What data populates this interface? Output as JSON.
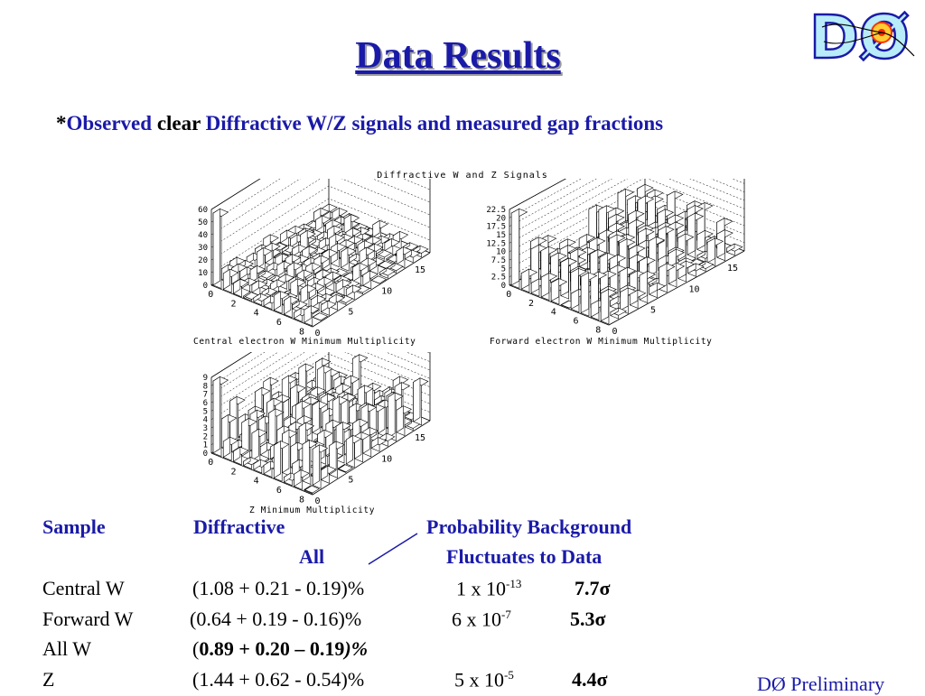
{
  "slide": {
    "title": "Data Results",
    "subtitle": {
      "star": "*",
      "observed": "Observed",
      "clear": "clear",
      "rest": "Diffractive W/Z signals and measured gap fractions"
    },
    "logo_text": "DØ",
    "figure_title": "Diffractive W and Z Signals",
    "plots": [
      {
        "caption": "Central electron W Minimum Multiplicity",
        "y_ticks": [
          "0",
          "10",
          "20",
          "30",
          "40",
          "50",
          "60"
        ],
        "x_ticks": [
          "0",
          "2",
          "4",
          "6",
          "8"
        ],
        "z_ticks": [
          "0",
          "5",
          "10",
          "15"
        ]
      },
      {
        "caption": "Forward electron W Minimum Multiplicity",
        "y_ticks": [
          "0",
          "2.5",
          "5",
          "7.5",
          "10",
          "12.5",
          "15",
          "17.5",
          "20",
          "22.5"
        ],
        "x_ticks": [
          "0",
          "2",
          "4",
          "6",
          "8"
        ],
        "z_ticks": [
          "0",
          "5",
          "10",
          "15"
        ]
      },
      {
        "caption": "Z Minimum Multiplicity",
        "y_ticks": [
          "0",
          "1",
          "2",
          "3",
          "4",
          "5",
          "6",
          "7",
          "8",
          "9"
        ],
        "x_ticks": [
          "0",
          "2",
          "4",
          "6",
          "8"
        ],
        "z_ticks": [
          "0",
          "5",
          "10",
          "15"
        ]
      }
    ],
    "table": {
      "headers": {
        "sample": "Sample",
        "diffractive": "Diffractive",
        "all": "All",
        "probability": "Probability Background",
        "fluctuates": "Fluctuates to Data"
      },
      "rows": [
        {
          "sample": "Central W",
          "diffractive": "(1.08 + 0.21 - 0.19)%",
          "prob_base": "1 x 10",
          "prob_exp": "-13",
          "sigma": "7.7σ"
        },
        {
          "sample": "Forward W",
          "diffractive": "(0.64 + 0.19 - 0.16)%",
          "prob_base": "6 x 10",
          "prob_exp": "-7",
          "sigma": "5.3σ"
        },
        {
          "sample": "All W",
          "diffractive_open": "(",
          "diffractive_bold": "0.89 + 0.20 – 0.19",
          "diffractive_close": ")%"
        },
        {
          "sample": "Z",
          "diffractive": "(1.44 + 0.62 - 0.54)%",
          "prob_base": "5 x 10",
          "prob_exp": "-5",
          "sigma": "4.4σ"
        }
      ]
    },
    "footer": "DØ Preliminary",
    "colors": {
      "title": "#1a1aa8",
      "text": "#000000",
      "logo_fill": "#b8ecf8"
    }
  }
}
